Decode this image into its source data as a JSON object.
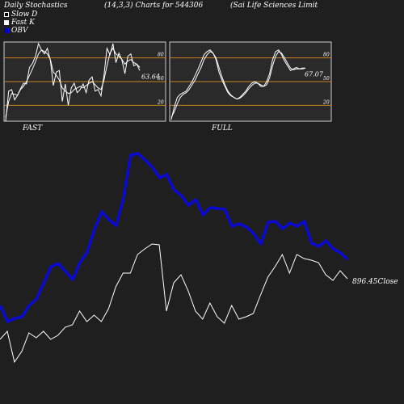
{
  "header": {
    "left": "Daily Stochastics",
    "middle": "(14,3,3) Charts for 544306",
    "right": "(Sai  Life   Sciences Limit"
  },
  "legend": [
    {
      "label": "Slow  D",
      "swatch": "#000000",
      "border": "#ffffff"
    },
    {
      "label": "Fast K",
      "swatch": "#ffffff",
      "border": "#ffffff"
    },
    {
      "label": "OBV",
      "swatch": "#0000cc",
      "border": "#0000cc"
    }
  ],
  "colors": {
    "background": "#1f1f1f",
    "panel": "#2a2a2a",
    "panel_border": "#cccccc",
    "level_line": "#c8821e",
    "price_line": "#ffffff",
    "obv_line": "#0a0ad0"
  },
  "chart_data": [
    {
      "type": "line",
      "name": "fast-stochastic",
      "xlabel": "FAST",
      "ylim": [
        0,
        100
      ],
      "levels": [
        20,
        50,
        80
      ],
      "level_labels": [
        "20",
        "50",
        "80"
      ],
      "last_value_label": "63.64",
      "series": [
        {
          "name": "Fast K",
          "values": [
            0,
            38,
            40,
            27,
            33,
            41,
            48,
            47,
            68,
            73,
            82,
            98,
            90,
            85,
            92,
            77,
            45,
            62,
            64,
            25,
            47,
            20,
            42,
            48,
            36,
            40,
            47,
            36,
            52,
            56,
            38,
            40,
            32,
            58,
            92,
            84,
            98,
            74,
            86,
            77,
            60,
            82,
            85,
            70,
            72,
            64
          ]
        },
        {
          "name": "Slow D",
          "values": [
            5,
            25,
            35,
            34,
            33,
            40,
            44,
            50,
            58,
            66,
            75,
            85,
            90,
            88,
            85,
            78,
            62,
            58,
            52,
            42,
            38,
            35,
            36,
            40,
            42,
            44,
            42,
            45,
            48,
            50,
            46,
            42,
            40,
            52,
            70,
            86,
            92,
            85,
            82,
            78,
            72,
            76,
            78,
            74,
            72,
            68
          ]
        }
      ]
    },
    {
      "type": "line",
      "name": "full-stochastic",
      "xlabel": "FULL",
      "ylim": [
        0,
        100
      ],
      "levels": [
        20,
        50,
        80
      ],
      "level_labels": [
        "20",
        "50",
        "80"
      ],
      "last_value_label": "67.07",
      "series": [
        {
          "name": "Fast K",
          "values": [
            2,
            18,
            30,
            34,
            36,
            38,
            44,
            50,
            58,
            66,
            75,
            84,
            88,
            90,
            86,
            78,
            62,
            52,
            44,
            36,
            32,
            30,
            28,
            30,
            34,
            38,
            44,
            48,
            50,
            48,
            44,
            44,
            50,
            60,
            78,
            88,
            90,
            84,
            76,
            70,
            64,
            66,
            68,
            66,
            67,
            67
          ]
        },
        {
          "name": "Slow D",
          "values": [
            5,
            12,
            22,
            30,
            34,
            36,
            40,
            46,
            52,
            60,
            68,
            78,
            84,
            88,
            86,
            80,
            68,
            56,
            46,
            38,
            33,
            30,
            28,
            29,
            32,
            36,
            41,
            45,
            48,
            48,
            46,
            44,
            46,
            55,
            70,
            82,
            88,
            86,
            80,
            73,
            67,
            65,
            66,
            66,
            66,
            67
          ]
        }
      ]
    },
    {
      "type": "line",
      "name": "price-obv",
      "price_label": "896.45Close",
      "series": [
        {
          "name": "Close",
          "values": [
            420,
            410,
            448,
            435,
            412,
            418,
            410,
            420,
            415,
            405,
            402,
            385,
            398,
            390,
            398,
            382,
            355,
            338,
            338,
            315,
            308,
            302,
            303,
            385,
            350,
            340,
            360,
            385,
            395,
            375,
            392,
            400,
            378,
            395,
            392,
            388,
            365,
            343,
            330,
            315,
            338,
            315,
            320,
            322,
            325,
            340,
            347,
            335,
            345
          ]
        },
        {
          "name": "OBV",
          "values": [
            120,
            100,
            104,
            106,
            120,
            128,
            148,
            168,
            172,
            162,
            152,
            173,
            186,
            214,
            236,
            226,
            219,
            252,
            306,
            308,
            300,
            291,
            278,
            282,
            263,
            256,
            244,
            251,
            232,
            241,
            240,
            239,
            218,
            221,
            217,
            209,
            196,
            223,
            224,
            215,
            222,
            218,
            224,
            197,
            193,
            200,
            190,
            185,
            177
          ]
        }
      ]
    }
  ]
}
